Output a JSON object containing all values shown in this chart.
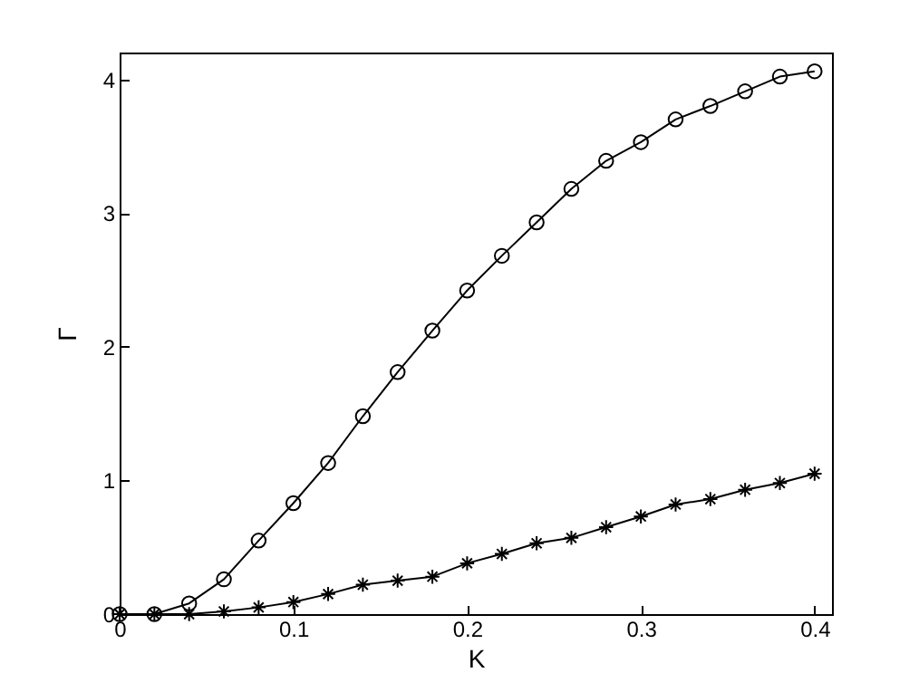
{
  "chart_data": {
    "type": "line",
    "xlabel": "K",
    "ylabel": "Γ",
    "x": [
      0,
      0.02,
      0.04,
      0.06,
      0.08,
      0.1,
      0.12,
      0.14,
      0.16,
      0.18,
      0.2,
      0.22,
      0.24,
      0.26,
      0.28,
      0.3,
      0.32,
      0.34,
      0.36,
      0.38,
      0.4
    ],
    "series": [
      {
        "color": "#000000",
        "marker": "circle",
        "values": [
          0,
          0,
          0.08,
          0.26,
          0.55,
          0.83,
          1.13,
          1.48,
          1.81,
          2.12,
          2.42,
          2.68,
          2.93,
          3.18,
          3.39,
          3.53,
          3.7,
          3.8,
          3.91,
          4.02,
          4.06
        ]
      },
      {
        "color": "#000000",
        "marker": "cross",
        "values": [
          0,
          0,
          0,
          0.02,
          0.05,
          0.09,
          0.15,
          0.22,
          0.25,
          0.28,
          0.38,
          0.45,
          0.53,
          0.57,
          0.65,
          0.73,
          0.82,
          0.86,
          0.93,
          0.98,
          1.05
        ]
      }
    ],
    "xlim": [
      0,
      0.41
    ],
    "ylim": [
      0,
      4.2
    ],
    "xticks": [
      0,
      0.1,
      0.2,
      0.3,
      0.4
    ],
    "yticks": [
      0,
      1,
      2,
      3,
      4
    ],
    "grid": false,
    "line_style": "solid"
  }
}
